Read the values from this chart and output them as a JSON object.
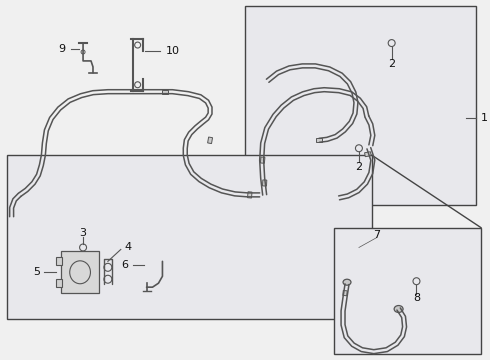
{
  "bg_color": "#f0f0f0",
  "fill_color": "#e8e8ec",
  "border_color": "#444444",
  "line_color": "#555555",
  "text_color": "#111111",
  "fig_width": 4.9,
  "fig_height": 3.6,
  "dpi": 100
}
